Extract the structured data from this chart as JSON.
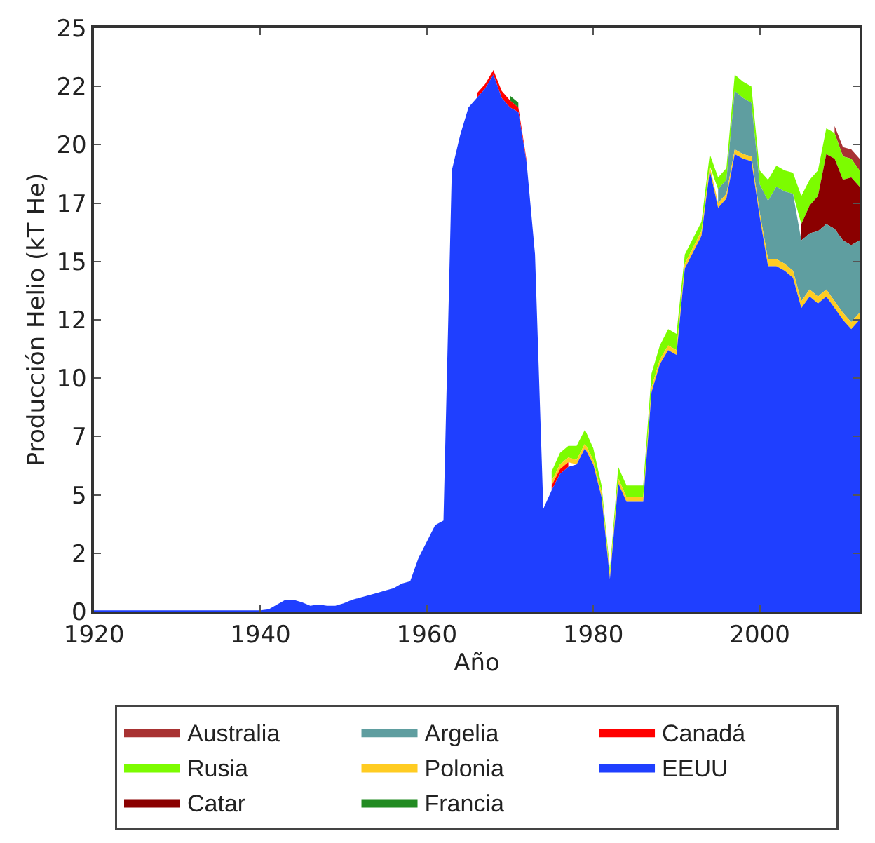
{
  "chart_data": {
    "type": "area",
    "stacked": true,
    "xlabel": "Año",
    "ylabel": "Producción Helio (kT He)",
    "x": [
      1920,
      1925,
      1930,
      1935,
      1940,
      1941,
      1942,
      1943,
      1944,
      1945,
      1946,
      1947,
      1948,
      1949,
      1950,
      1951,
      1952,
      1953,
      1954,
      1955,
      1956,
      1957,
      1958,
      1959,
      1960,
      1961,
      1962,
      1963,
      1964,
      1965,
      1966,
      1967,
      1968,
      1969,
      1970,
      1971,
      1972,
      1973,
      1974,
      1975,
      1976,
      1977,
      1978,
      1979,
      1980,
      1981,
      1982,
      1983,
      1984,
      1985,
      1986,
      1987,
      1988,
      1989,
      1990,
      1991,
      1992,
      1993,
      1994,
      1995,
      1996,
      1997,
      1998,
      1999,
      2000,
      2001,
      2002,
      2003,
      2004,
      2005,
      2006,
      2007,
      2008,
      2009,
      2010,
      2011,
      2012
    ],
    "xlim": [
      1920,
      2012
    ],
    "xticks": [
      1920,
      1940,
      1960,
      1980,
      2000
    ],
    "ylim": [
      0,
      25
    ],
    "yticks": [
      0,
      {
        "value": 2.5,
        "label": "2"
      },
      5,
      {
        "value": 7.5,
        "label": "7"
      },
      10,
      {
        "value": 12.5,
        "label": "12"
      },
      15,
      {
        "value": 17.5,
        "label": "17"
      },
      20,
      {
        "value": 22.5,
        "label": "22"
      },
      25
    ],
    "legend": "bottom",
    "series": [
      {
        "name": "EEUU",
        "color": "#1f3fff",
        "values": [
          0.05,
          0.05,
          0.05,
          0.05,
          0.05,
          0.1,
          0.3,
          0.5,
          0.5,
          0.4,
          0.25,
          0.3,
          0.25,
          0.25,
          0.35,
          0.5,
          0.6,
          0.7,
          0.8,
          0.9,
          1.0,
          1.2,
          1.3,
          2.3,
          3.0,
          3.7,
          3.9,
          18.9,
          20.4,
          21.6,
          22.0,
          22.4,
          23.0,
          22.0,
          21.6,
          21.4,
          19.2,
          15.3,
          4.4,
          5.2,
          5.9,
          6.2,
          6.3,
          7.0,
          6.3,
          4.9,
          1.4,
          5.5,
          4.7,
          4.7,
          4.7,
          9.4,
          10.6,
          11.2,
          11.0,
          14.7,
          15.4,
          16.1,
          18.9,
          17.3,
          17.7,
          19.6,
          19.4,
          19.3,
          16.9,
          14.8,
          14.8,
          14.6,
          14.3,
          13.0,
          13.5,
          13.2,
          13.5,
          13.0,
          12.5,
          12.1,
          12.5
        ]
      },
      {
        "name": "Canadá",
        "color": "#ff0000",
        "values": [
          null,
          null,
          null,
          null,
          null,
          null,
          null,
          null,
          null,
          null,
          null,
          null,
          null,
          null,
          null,
          null,
          null,
          null,
          null,
          null,
          null,
          null,
          null,
          null,
          null,
          null,
          null,
          null,
          null,
          null,
          0.2,
          0.2,
          0.2,
          0.3,
          0.3,
          0.2,
          0.1,
          null,
          null,
          0.2,
          0.2,
          0.2,
          null,
          null,
          null,
          null,
          null,
          null,
          null,
          null,
          null,
          null,
          null,
          null,
          null,
          null,
          null,
          null,
          null,
          null,
          null,
          null,
          null,
          null,
          null,
          null,
          null,
          null,
          null,
          null,
          null,
          null,
          null,
          null,
          null,
          null,
          null
        ]
      },
      {
        "name": "Francia",
        "color": "#228b22",
        "values": [
          null,
          null,
          null,
          null,
          null,
          null,
          null,
          null,
          null,
          null,
          null,
          null,
          null,
          null,
          null,
          null,
          null,
          null,
          null,
          null,
          null,
          null,
          null,
          null,
          null,
          null,
          null,
          null,
          null,
          null,
          null,
          null,
          null,
          null,
          0.2,
          0.2,
          null,
          null,
          null,
          null,
          null,
          null,
          null,
          null,
          null,
          null,
          null,
          null,
          null,
          null,
          null,
          null,
          null,
          null,
          null,
          null,
          null,
          null,
          null,
          null,
          null,
          null,
          null,
          null,
          null,
          null,
          null,
          null,
          null,
          null,
          null,
          null,
          null,
          null,
          null,
          null,
          null
        ]
      },
      {
        "name": "Polonia",
        "color": "#ffcc22",
        "values": [
          null,
          null,
          null,
          null,
          null,
          null,
          null,
          null,
          null,
          null,
          null,
          null,
          null,
          null,
          null,
          null,
          null,
          null,
          null,
          null,
          null,
          null,
          null,
          null,
          null,
          null,
          null,
          null,
          null,
          null,
          null,
          null,
          null,
          null,
          null,
          null,
          null,
          null,
          null,
          0.2,
          0.2,
          0.2,
          0.2,
          0.2,
          0.2,
          0.2,
          0.2,
          0.2,
          0.2,
          0.2,
          0.2,
          0.2,
          0.2,
          0.2,
          0.2,
          0.2,
          0.2,
          0.2,
          0.2,
          0.2,
          0.2,
          0.2,
          0.2,
          0.2,
          0.2,
          0.3,
          0.3,
          0.3,
          0.3,
          0.3,
          0.3,
          0.3,
          0.3,
          0.3,
          0.3,
          0.3,
          0.3
        ]
      },
      {
        "name": "Argelia",
        "color": "#5f9ea0",
        "values": [
          null,
          null,
          null,
          null,
          null,
          null,
          null,
          null,
          null,
          null,
          null,
          null,
          null,
          null,
          null,
          null,
          null,
          null,
          null,
          null,
          null,
          null,
          null,
          null,
          null,
          null,
          null,
          null,
          null,
          null,
          null,
          null,
          null,
          null,
          null,
          null,
          null,
          null,
          null,
          null,
          null,
          null,
          null,
          null,
          null,
          null,
          null,
          null,
          null,
          null,
          null,
          null,
          null,
          null,
          null,
          null,
          null,
          null,
          null,
          0.6,
          0.6,
          2.5,
          2.4,
          2.3,
          1.2,
          2.5,
          3.1,
          3.1,
          3.3,
          2.6,
          2.4,
          2.8,
          2.8,
          3.1,
          3.1,
          3.3,
          3.1
        ]
      },
      {
        "name": "Catar",
        "color": "#8b0000",
        "values": [
          null,
          null,
          null,
          null,
          null,
          null,
          null,
          null,
          null,
          null,
          null,
          null,
          null,
          null,
          null,
          null,
          null,
          null,
          null,
          null,
          null,
          null,
          null,
          null,
          null,
          null,
          null,
          null,
          null,
          null,
          null,
          null,
          null,
          null,
          null,
          null,
          null,
          null,
          null,
          null,
          null,
          null,
          null,
          null,
          null,
          null,
          null,
          null,
          null,
          null,
          null,
          null,
          null,
          null,
          null,
          null,
          null,
          null,
          null,
          null,
          null,
          null,
          null,
          null,
          null,
          null,
          null,
          null,
          null,
          0.7,
          1.2,
          1.5,
          3.0,
          3.0,
          2.6,
          2.9,
          2.3
        ]
      },
      {
        "name": "Rusia",
        "color": "#7cfc00",
        "values": [
          null,
          null,
          null,
          null,
          null,
          null,
          null,
          null,
          null,
          null,
          null,
          null,
          null,
          null,
          null,
          null,
          null,
          null,
          null,
          null,
          null,
          null,
          null,
          null,
          null,
          null,
          null,
          null,
          null,
          null,
          null,
          null,
          null,
          null,
          null,
          null,
          null,
          null,
          null,
          0.4,
          0.5,
          0.5,
          0.6,
          0.6,
          0.5,
          0.3,
          0.2,
          0.5,
          0.5,
          0.5,
          0.5,
          0.6,
          0.6,
          0.7,
          0.7,
          0.4,
          0.4,
          0.4,
          0.5,
          0.5,
          0.5,
          0.7,
          0.7,
          0.7,
          0.6,
          0.9,
          0.9,
          0.9,
          0.9,
          1.2,
          1.1,
          1.1,
          1.1,
          1.1,
          1.0,
          0.8,
          0.7
        ]
      },
      {
        "name": "Australia",
        "color": "#a83232",
        "values": [
          null,
          null,
          null,
          null,
          null,
          null,
          null,
          null,
          null,
          null,
          null,
          null,
          null,
          null,
          null,
          null,
          null,
          null,
          null,
          null,
          null,
          null,
          null,
          null,
          null,
          null,
          null,
          null,
          null,
          null,
          null,
          null,
          null,
          null,
          null,
          null,
          null,
          null,
          null,
          null,
          null,
          null,
          null,
          null,
          null,
          null,
          null,
          null,
          null,
          null,
          null,
          null,
          null,
          null,
          null,
          null,
          null,
          null,
          null,
          null,
          null,
          null,
          null,
          null,
          null,
          null,
          null,
          null,
          null,
          null,
          null,
          null,
          null,
          0.3,
          0.4,
          0.4,
          0.5
        ]
      }
    ]
  }
}
